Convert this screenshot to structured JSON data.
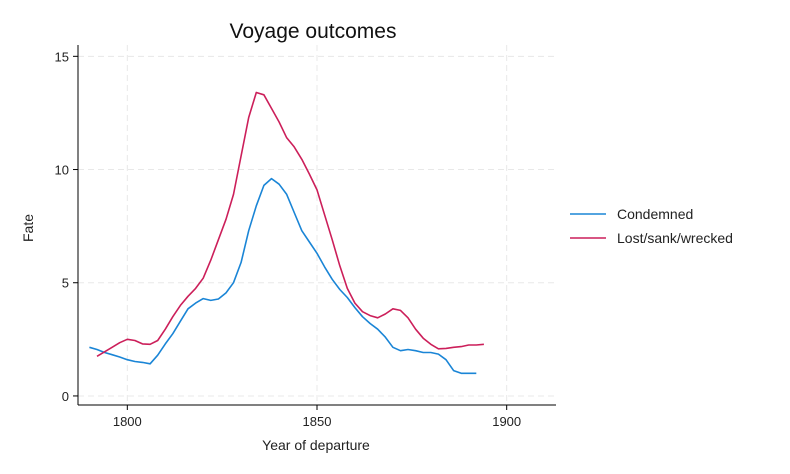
{
  "chart_data": {
    "type": "line",
    "title": "Voyage outcomes",
    "xlabel": "Year of departure",
    "ylabel": "Fate",
    "xlim": [
      1787,
      1913
    ],
    "ylim": [
      -0.4,
      15.5
    ],
    "xticks": [
      1800,
      1850,
      1900
    ],
    "yticks": [
      0,
      5,
      10,
      15
    ],
    "grid": true,
    "legend_position": "right",
    "series": [
      {
        "name": "Condemned",
        "color": "#1a85d6",
        "points": [
          [
            1790,
            2.15
          ],
          [
            1792,
            2.05
          ],
          [
            1794,
            1.92
          ],
          [
            1796,
            1.82
          ],
          [
            1798,
            1.72
          ],
          [
            1800,
            1.6
          ],
          [
            1802,
            1.52
          ],
          [
            1804,
            1.48
          ],
          [
            1806,
            1.42
          ],
          [
            1808,
            1.8
          ],
          [
            1810,
            2.3
          ],
          [
            1812,
            2.75
          ],
          [
            1814,
            3.3
          ],
          [
            1816,
            3.85
          ],
          [
            1818,
            4.1
          ],
          [
            1820,
            4.3
          ],
          [
            1822,
            4.22
          ],
          [
            1824,
            4.28
          ],
          [
            1826,
            4.55
          ],
          [
            1828,
            5.0
          ],
          [
            1830,
            5.9
          ],
          [
            1832,
            7.3
          ],
          [
            1834,
            8.4
          ],
          [
            1836,
            9.3
          ],
          [
            1838,
            9.6
          ],
          [
            1840,
            9.35
          ],
          [
            1842,
            8.9
          ],
          [
            1844,
            8.1
          ],
          [
            1846,
            7.3
          ],
          [
            1848,
            6.8
          ],
          [
            1850,
            6.3
          ],
          [
            1852,
            5.7
          ],
          [
            1854,
            5.15
          ],
          [
            1856,
            4.7
          ],
          [
            1858,
            4.35
          ],
          [
            1860,
            3.9
          ],
          [
            1862,
            3.5
          ],
          [
            1864,
            3.2
          ],
          [
            1866,
            2.95
          ],
          [
            1868,
            2.6
          ],
          [
            1870,
            2.15
          ],
          [
            1872,
            2.0
          ],
          [
            1874,
            2.05
          ],
          [
            1876,
            2.0
          ],
          [
            1878,
            1.92
          ],
          [
            1880,
            1.92
          ],
          [
            1882,
            1.85
          ],
          [
            1884,
            1.6
          ],
          [
            1886,
            1.12
          ],
          [
            1888,
            1.0
          ],
          [
            1890,
            1.0
          ],
          [
            1892,
            1.0
          ]
        ]
      },
      {
        "name": "Lost/sank/wrecked",
        "color": "#cc1f5a",
        "points": [
          [
            1792,
            1.75
          ],
          [
            1794,
            1.95
          ],
          [
            1796,
            2.15
          ],
          [
            1798,
            2.35
          ],
          [
            1800,
            2.5
          ],
          [
            1802,
            2.45
          ],
          [
            1804,
            2.3
          ],
          [
            1806,
            2.28
          ],
          [
            1808,
            2.45
          ],
          [
            1810,
            2.95
          ],
          [
            1812,
            3.5
          ],
          [
            1814,
            4.0
          ],
          [
            1816,
            4.4
          ],
          [
            1818,
            4.75
          ],
          [
            1820,
            5.2
          ],
          [
            1822,
            6.0
          ],
          [
            1824,
            6.9
          ],
          [
            1826,
            7.8
          ],
          [
            1828,
            8.9
          ],
          [
            1830,
            10.6
          ],
          [
            1832,
            12.3
          ],
          [
            1834,
            13.4
          ],
          [
            1836,
            13.3
          ],
          [
            1838,
            12.7
          ],
          [
            1840,
            12.1
          ],
          [
            1842,
            11.4
          ],
          [
            1844,
            11.0
          ],
          [
            1846,
            10.45
          ],
          [
            1848,
            9.8
          ],
          [
            1850,
            9.1
          ],
          [
            1852,
            8.0
          ],
          [
            1854,
            6.9
          ],
          [
            1856,
            5.75
          ],
          [
            1858,
            4.75
          ],
          [
            1860,
            4.1
          ],
          [
            1862,
            3.72
          ],
          [
            1864,
            3.55
          ],
          [
            1866,
            3.45
          ],
          [
            1868,
            3.62
          ],
          [
            1870,
            3.85
          ],
          [
            1872,
            3.78
          ],
          [
            1874,
            3.45
          ],
          [
            1876,
            2.95
          ],
          [
            1878,
            2.55
          ],
          [
            1880,
            2.28
          ],
          [
            1882,
            2.08
          ],
          [
            1884,
            2.1
          ],
          [
            1886,
            2.15
          ],
          [
            1888,
            2.18
          ],
          [
            1890,
            2.25
          ],
          [
            1892,
            2.25
          ],
          [
            1894,
            2.28
          ]
        ]
      }
    ]
  }
}
